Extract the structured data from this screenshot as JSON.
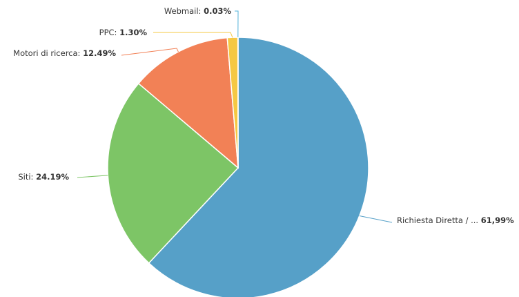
{
  "chart_data": {
    "type": "pie",
    "categories": [
      "Richiesta Diretta / ...",
      "Siti:",
      "Motori di ricerca:",
      "PPC:",
      "Webmail:"
    ],
    "values": [
      61.99,
      24.19,
      12.49,
      1.3,
      0.03
    ],
    "value_labels": [
      "61,99%",
      "24.19%",
      "12.49%",
      "1.30%",
      "0.03%"
    ],
    "colors": [
      "#56a0c8",
      "#7dc566",
      "#f28156",
      "#f5c843",
      "#4fb0d8"
    ]
  }
}
